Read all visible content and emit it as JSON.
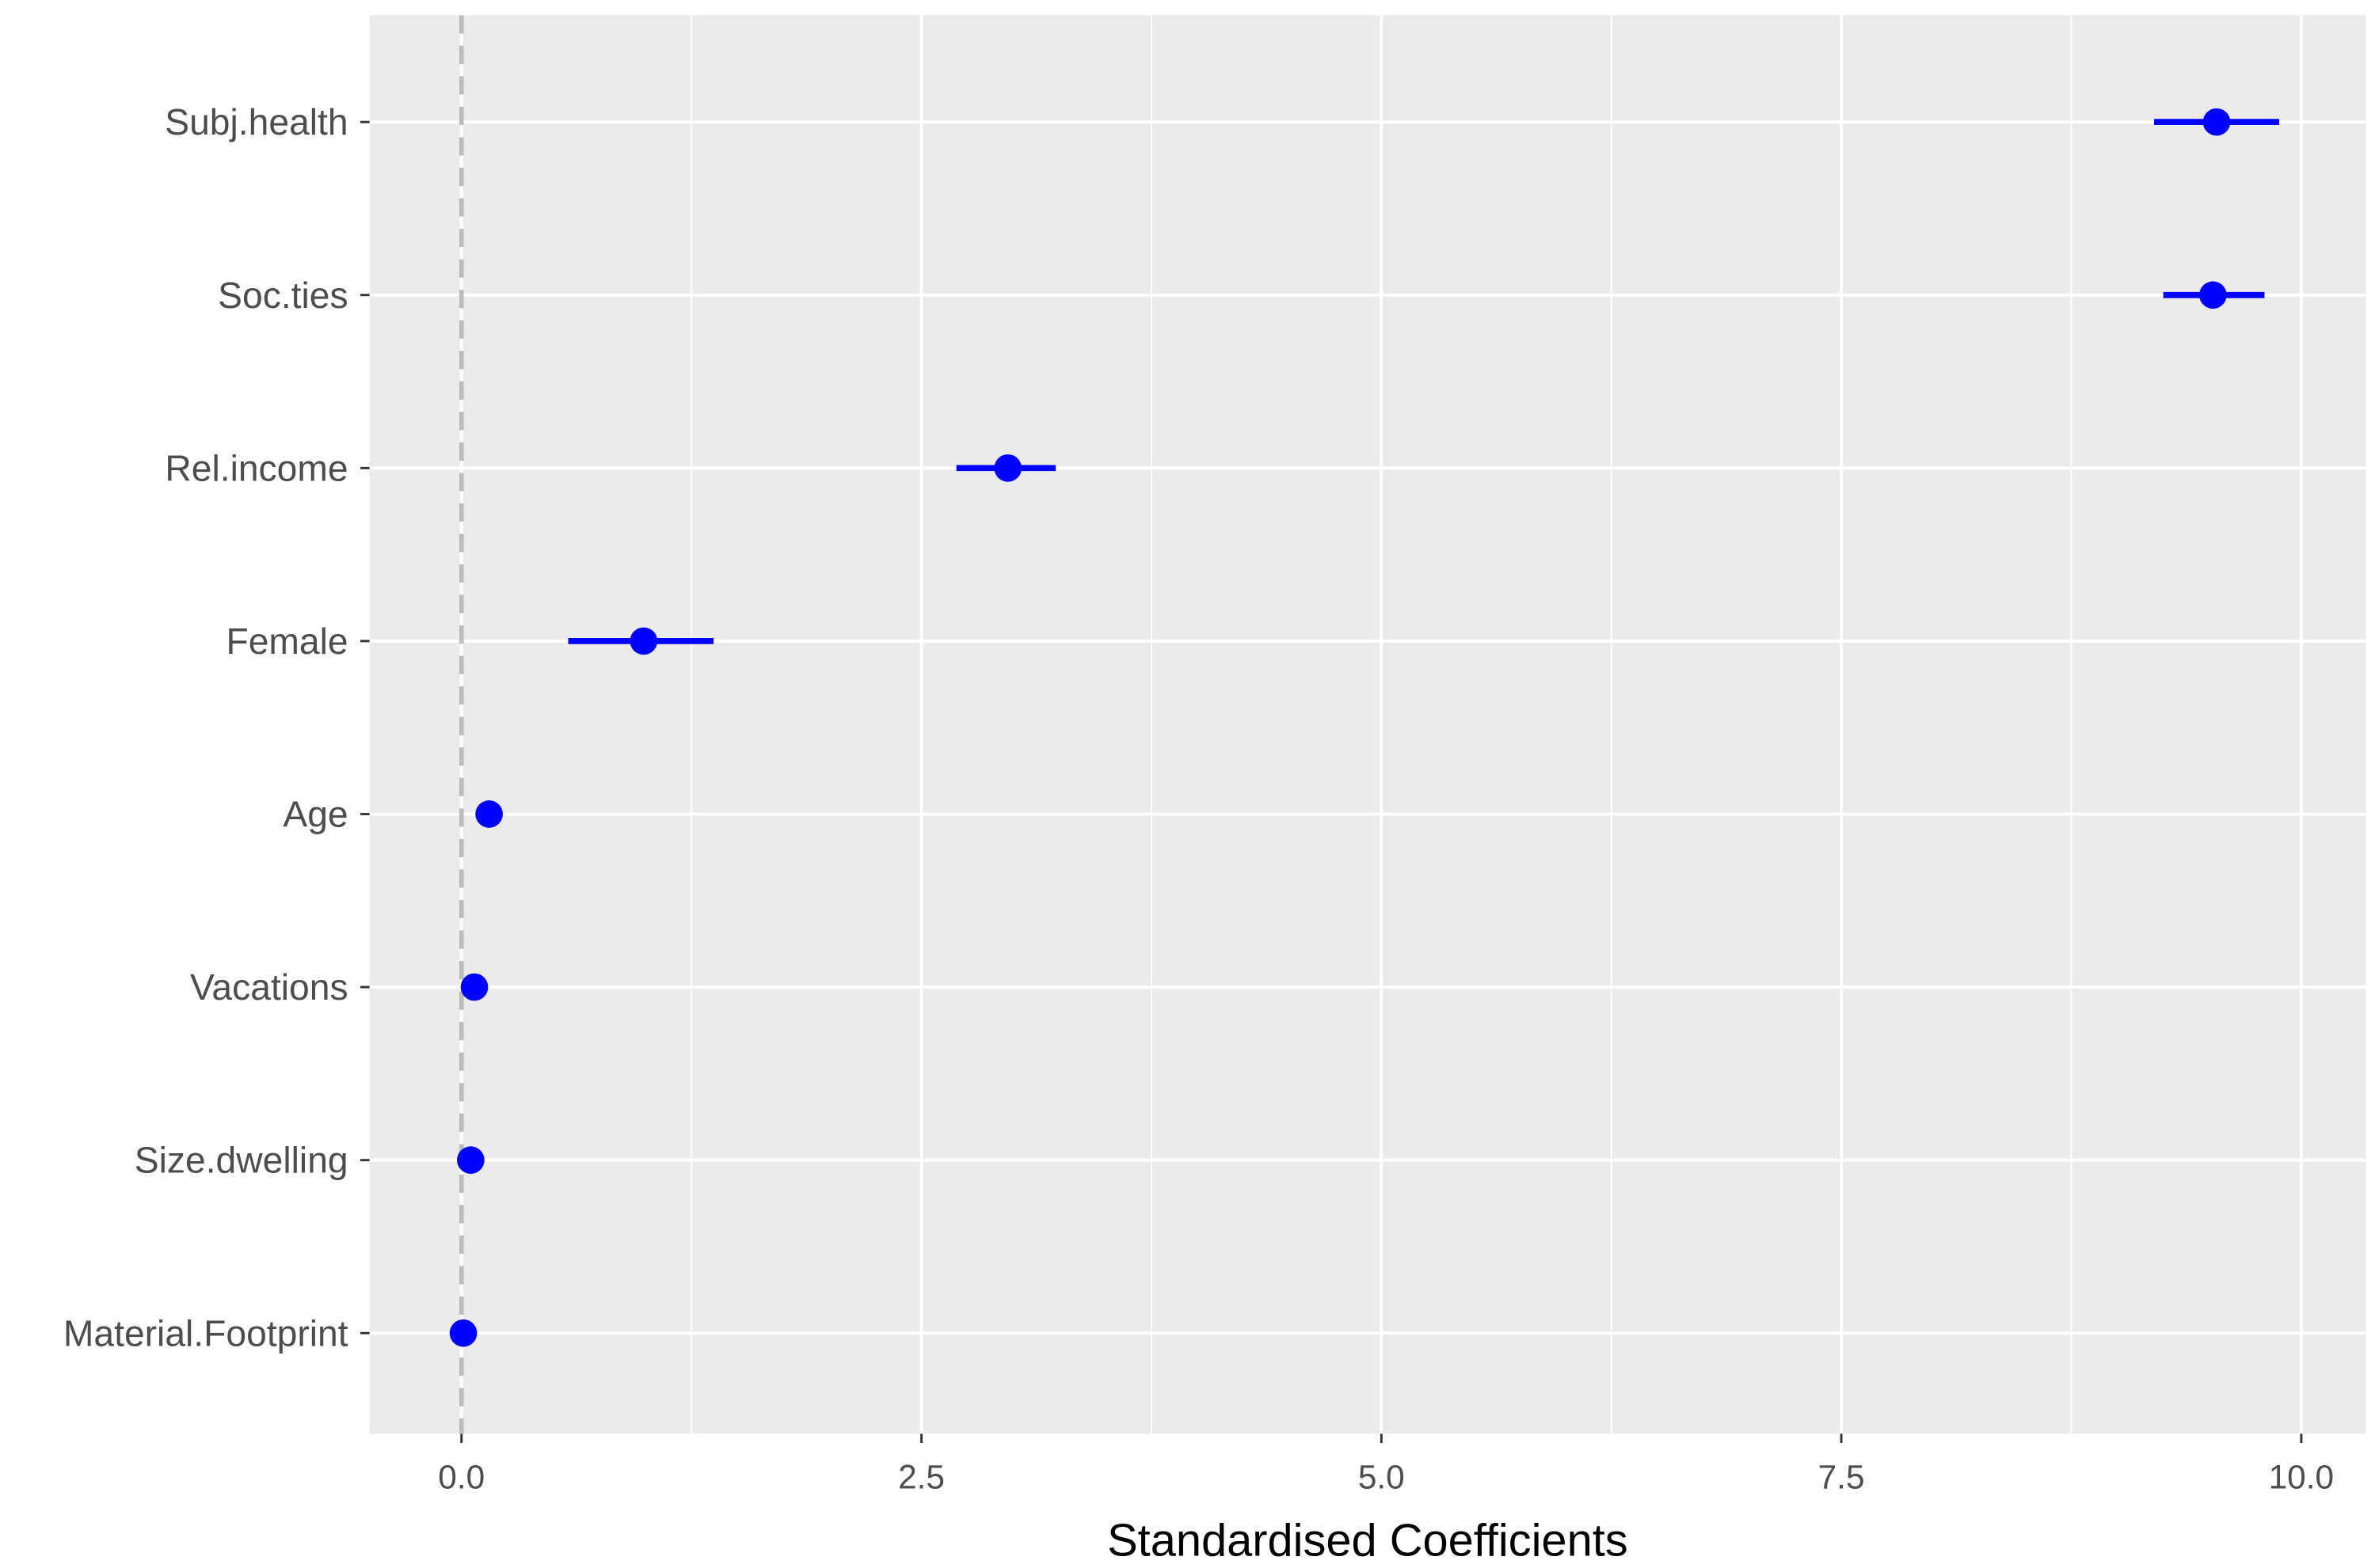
{
  "chart_data": {
    "type": "forest",
    "xlabel": "Standardised Coefficients",
    "categories": [
      "Subj.health",
      "Soc.ties",
      "Rel.income",
      "Female",
      "Age",
      "Vacations",
      "Size.dwelling",
      "Material.Footprint"
    ],
    "values": [
      9.54,
      9.52,
      2.97,
      0.99,
      0.15,
      0.07,
      0.05,
      0.01
    ],
    "lower": [
      9.2,
      9.25,
      2.69,
      0.58,
      0.12,
      0.04,
      0.02,
      -0.02
    ],
    "upper": [
      9.88,
      9.8,
      3.23,
      1.37,
      0.18,
      0.1,
      0.08,
      0.04
    ],
    "color": "#0000ff",
    "xlim": [
      -0.5,
      10.35
    ],
    "xticks": [
      {
        "value": 0,
        "label": "0.0"
      },
      2.5,
      {
        "value": 5,
        "label": "5.0"
      },
      7.5,
      {
        "value": 10,
        "label": "10.0"
      }
    ],
    "xminor": [
      1.25,
      3.75,
      6.25,
      8.75
    ],
    "reference_line": 0,
    "grid": true
  }
}
